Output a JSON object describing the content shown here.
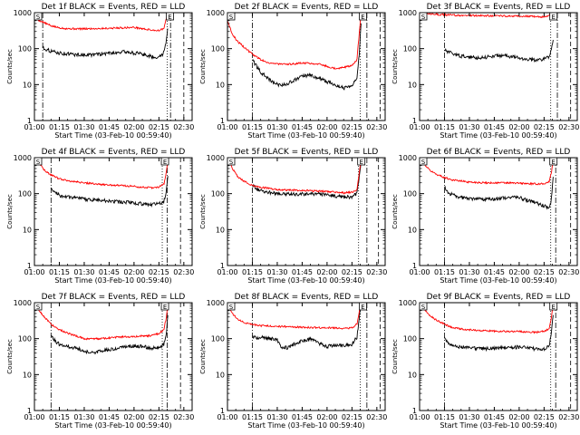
{
  "chart_data": [
    {
      "type": "line",
      "title": "Det 1f BLACK = Events, RED = LLD",
      "xlabel": "Start Time (03-Feb-10 00:59:40)",
      "ylabel": "Counts/sec",
      "x_ticks": [
        "01:00",
        "01:15",
        "01:30",
        "01:45",
        "02:00",
        "02:15",
        "02:30"
      ],
      "y_ticks": [
        "1",
        "10",
        "100",
        "1000"
      ],
      "ylim": [
        1,
        1000
      ],
      "y_scale": "log",
      "corner_labels": [
        "S",
        "E"
      ],
      "grid": false,
      "series": [
        {
          "color": "#ff0000",
          "x": [
            0,
            5,
            10,
            15,
            20,
            30,
            45,
            60,
            70,
            75,
            78,
            79.5,
            80.5
          ],
          "y": [
            700,
            550,
            430,
            380,
            360,
            355,
            370,
            390,
            330,
            320,
            360,
            700,
            1000
          ]
        },
        {
          "color": "#000000",
          "x": [
            5,
            6,
            10,
            15,
            25,
            35,
            45,
            55,
            65,
            72,
            76,
            78,
            79.5,
            80.5
          ],
          "y": [
            110,
            100,
            85,
            75,
            68,
            67,
            75,
            82,
            70,
            58,
            60,
            80,
            180,
            500
          ]
        }
      ],
      "vlines": [
        {
          "x": 5,
          "style": "dash-dot"
        },
        {
          "x": 80,
          "style": "dotted"
        },
        {
          "x": 82,
          "style": "dash-dot"
        },
        {
          "x": 90,
          "style": "dashed"
        }
      ]
    },
    {
      "type": "line",
      "title": "Det 2f BLACK = Events, RED = LLD",
      "xlabel": "Start Time (03-Feb-10 00:59:40)",
      "ylabel": "Counts/sec",
      "x_ticks": [
        "01:00",
        "01:15",
        "01:30",
        "01:45",
        "02:00",
        "02:15",
        "02:30"
      ],
      "y_ticks": [
        "1",
        "10",
        "100",
        "1000"
      ],
      "ylim": [
        1,
        1000
      ],
      "y_scale": "log",
      "corner_labels": [
        "S",
        "E"
      ],
      "grid": false,
      "series": [
        {
          "color": "#ff0000",
          "x": [
            0,
            3,
            6,
            10,
            15,
            20,
            25,
            35,
            45,
            55,
            60,
            65,
            70,
            75,
            78,
            79.5,
            80.5
          ],
          "y": [
            600,
            250,
            160,
            110,
            70,
            50,
            40,
            36,
            40,
            38,
            32,
            28,
            30,
            34,
            50,
            300,
            1000
          ]
        },
        {
          "color": "#000000",
          "x": [
            15,
            17,
            20,
            25,
            30,
            35,
            40,
            45,
            50,
            55,
            60,
            65,
            70,
            75,
            78,
            79.5,
            80.5
          ],
          "y": [
            50,
            35,
            22,
            14,
            10,
            10,
            13,
            17,
            18,
            15,
            12,
            10,
            8,
            10,
            14,
            80,
            600
          ]
        }
      ],
      "vlines": [
        {
          "x": 15,
          "style": "dash-dot"
        },
        {
          "x": 80,
          "style": "dotted"
        },
        {
          "x": 84,
          "style": "dash-dot"
        },
        {
          "x": 92,
          "style": "dashed"
        }
      ]
    },
    {
      "type": "line",
      "title": "Det 3f BLACK = Events, RED = LLD",
      "xlabel": "Start Time (03-Feb-10 00:59:40)",
      "ylabel": "Counts/sec",
      "x_ticks": [
        "01:00",
        "01:15",
        "01:30",
        "01:45",
        "02:00",
        "02:15",
        "02:30"
      ],
      "y_ticks": [
        "1",
        "10",
        "100",
        "1000"
      ],
      "ylim": [
        1,
        1000
      ],
      "y_scale": "log",
      "corner_labels": [
        "S",
        "E"
      ],
      "grid": false,
      "series": [
        {
          "color": "#ff0000",
          "x": [
            0,
            5,
            10,
            15,
            25,
            35,
            45,
            55,
            65,
            72,
            76,
            78,
            79.5,
            80.5
          ],
          "y": [
            1000,
            950,
            900,
            870,
            840,
            830,
            820,
            810,
            800,
            760,
            780,
            850,
            950,
            1000
          ]
        },
        {
          "color": "#000000",
          "x": [
            15,
            16,
            20,
            25,
            30,
            35,
            40,
            45,
            50,
            55,
            60,
            65,
            70,
            75,
            78,
            79.5,
            80.5
          ],
          "y": [
            90,
            85,
            72,
            62,
            58,
            56,
            58,
            62,
            65,
            60,
            55,
            50,
            48,
            52,
            60,
            100,
            200
          ]
        }
      ],
      "vlines": [
        {
          "x": 15,
          "style": "dash-dot"
        },
        {
          "x": 79,
          "style": "dotted"
        },
        {
          "x": 83,
          "style": "dash-dot"
        },
        {
          "x": 91,
          "style": "dashed"
        }
      ]
    },
    {
      "type": "line",
      "title": "Det 4f BLACK = Events, RED = LLD",
      "xlabel": "Start Time (03-Feb-10 00:59:40)",
      "ylabel": "Counts/sec",
      "x_ticks": [
        "01:00",
        "01:15",
        "01:30",
        "01:45",
        "02:00",
        "02:15",
        "02:30"
      ],
      "y_ticks": [
        "1",
        "10",
        "100",
        "1000"
      ],
      "ylim": [
        1,
        1000
      ],
      "y_scale": "log",
      "corner_labels": [
        "S",
        "E"
      ],
      "grid": false,
      "series": [
        {
          "color": "#ff0000",
          "x": [
            0,
            3,
            6,
            10,
            15,
            20,
            30,
            40,
            50,
            60,
            65,
            70,
            75,
            78,
            79.5,
            80.5
          ],
          "y": [
            1000,
            700,
            450,
            330,
            260,
            230,
            200,
            180,
            170,
            160,
            150,
            145,
            155,
            180,
            400,
            1000
          ]
        },
        {
          "color": "#000000",
          "x": [
            10,
            12,
            15,
            20,
            30,
            40,
            50,
            60,
            65,
            70,
            75,
            78,
            79.5,
            80.5
          ],
          "y": [
            150,
            110,
            90,
            80,
            70,
            65,
            60,
            55,
            52,
            50,
            52,
            60,
            120,
            400
          ]
        }
      ],
      "vlines": [
        {
          "x": 10,
          "style": "dash-dot"
        },
        {
          "x": 77,
          "style": "dotted"
        },
        {
          "x": 80,
          "style": "dash-dot"
        },
        {
          "x": 88,
          "style": "dashed"
        }
      ]
    },
    {
      "type": "line",
      "title": "Det 5f BLACK = Events, RED = LLD",
      "xlabel": "Start Time (03-Feb-10 00:59:40)",
      "ylabel": "Counts/sec",
      "x_ticks": [
        "01:00",
        "01:15",
        "01:30",
        "01:45",
        "02:00",
        "02:15",
        "02:30"
      ],
      "y_ticks": [
        "1",
        "10",
        "100",
        "1000"
      ],
      "ylim": [
        1,
        1000
      ],
      "y_scale": "log",
      "corner_labels": [
        "S",
        "E"
      ],
      "grid": false,
      "series": [
        {
          "color": "#ff0000",
          "x": [
            0,
            3,
            6,
            10,
            15,
            20,
            30,
            40,
            50,
            60,
            65,
            70,
            75,
            78,
            79.5,
            80.5
          ],
          "y": [
            1000,
            500,
            300,
            220,
            170,
            150,
            130,
            125,
            120,
            115,
            110,
            105,
            110,
            130,
            400,
            1000
          ]
        },
        {
          "color": "#000000",
          "x": [
            15,
            17,
            20,
            25,
            30,
            40,
            50,
            60,
            65,
            70,
            75,
            78,
            79.5,
            80.5
          ],
          "y": [
            180,
            140,
            120,
            110,
            100,
            95,
            100,
            95,
            85,
            80,
            80,
            100,
            300,
            800
          ]
        }
      ],
      "vlines": [
        {
          "x": 15,
          "style": "dash-dot"
        },
        {
          "x": 79,
          "style": "dotted"
        },
        {
          "x": 84,
          "style": "dash-dot"
        },
        {
          "x": 91,
          "style": "dashed"
        }
      ]
    },
    {
      "type": "line",
      "title": "Det 6f BLACK = Events, RED = LLD",
      "xlabel": "Start Time (03-Feb-10 00:59:40)",
      "ylabel": "Counts/sec",
      "x_ticks": [
        "01:00",
        "01:15",
        "01:30",
        "01:45",
        "02:00",
        "02:15",
        "02:30"
      ],
      "y_ticks": [
        "1",
        "10",
        "100",
        "1000"
      ],
      "ylim": [
        1,
        1000
      ],
      "y_scale": "log",
      "corner_labels": [
        "S",
        "E"
      ],
      "grid": false,
      "series": [
        {
          "color": "#ff0000",
          "x": [
            0,
            3,
            6,
            10,
            15,
            20,
            30,
            40,
            50,
            60,
            65,
            70,
            75,
            78,
            79.5,
            80.5
          ],
          "y": [
            1000,
            650,
            450,
            350,
            280,
            240,
            210,
            200,
            200,
            195,
            190,
            185,
            190,
            210,
            400,
            1000
          ]
        },
        {
          "color": "#000000",
          "x": [
            15,
            17,
            20,
            25,
            30,
            40,
            50,
            55,
            60,
            65,
            70,
            75,
            78,
            79.5,
            80.5
          ],
          "y": [
            150,
            110,
            90,
            78,
            72,
            68,
            75,
            80,
            78,
            65,
            55,
            45,
            40,
            70,
            300
          ]
        }
      ],
      "vlines": [
        {
          "x": 15,
          "style": "dash-dot"
        },
        {
          "x": 79,
          "style": "dotted"
        },
        {
          "x": 82,
          "style": "dash-dot"
        },
        {
          "x": 91,
          "style": "dashed"
        }
      ]
    },
    {
      "type": "line",
      "title": "Det 7f BLACK = Events, RED = LLD",
      "xlabel": "Start Time (03-Feb-10 00:59:40)",
      "ylabel": "Counts/sec",
      "x_ticks": [
        "01:00",
        "01:15",
        "01:30",
        "01:45",
        "02:00",
        "02:15",
        "02:30"
      ],
      "y_ticks": [
        "1",
        "10",
        "100",
        "1000"
      ],
      "ylim": [
        1,
        1000
      ],
      "y_scale": "log",
      "corner_labels": [
        "S",
        "E"
      ],
      "grid": false,
      "series": [
        {
          "color": "#ff0000",
          "x": [
            0,
            3,
            6,
            10,
            15,
            20,
            25,
            30,
            40,
            50,
            60,
            65,
            70,
            75,
            78,
            79.5,
            80.5
          ],
          "y": [
            1000,
            600,
            400,
            250,
            180,
            140,
            120,
            100,
            100,
            110,
            115,
            120,
            120,
            140,
            180,
            400,
            1000
          ]
        },
        {
          "color": "#000000",
          "x": [
            10,
            12,
            15,
            20,
            25,
            30,
            35,
            40,
            45,
            50,
            55,
            60,
            65,
            70,
            75,
            78,
            79.5,
            80.5
          ],
          "y": [
            120,
            90,
            70,
            60,
            55,
            45,
            40,
            45,
            50,
            55,
            60,
            62,
            60,
            55,
            55,
            70,
            150,
            500
          ]
        }
      ],
      "vlines": [
        {
          "x": 10,
          "style": "dash-dot"
        },
        {
          "x": 77,
          "style": "dotted"
        },
        {
          "x": 80,
          "style": "dash-dot"
        },
        {
          "x": 88,
          "style": "dashed"
        }
      ]
    },
    {
      "type": "line",
      "title": "Det 8f BLACK = Events, RED = LLD",
      "xlabel": "Start Time (03-Feb-10 00:59:40)",
      "ylabel": "Counts/sec",
      "x_ticks": [
        "01:00",
        "01:15",
        "01:30",
        "01:45",
        "02:00",
        "02:15",
        "02:30"
      ],
      "y_ticks": [
        "1",
        "10",
        "100",
        "1000"
      ],
      "ylim": [
        1,
        1000
      ],
      "y_scale": "log",
      "corner_labels": [
        "S",
        "E"
      ],
      "grid": false,
      "series": [
        {
          "color": "#ff0000",
          "x": [
            0,
            3,
            6,
            10,
            15,
            20,
            30,
            40,
            50,
            60,
            70,
            75,
            78,
            79.5,
            80.5
          ],
          "y": [
            1000,
            500,
            350,
            280,
            250,
            230,
            220,
            210,
            205,
            200,
            195,
            200,
            250,
            600,
            1000
          ]
        },
        {
          "color": "#000000",
          "x": [
            15,
            17,
            20,
            25,
            30,
            32,
            36,
            40,
            45,
            50,
            55,
            60,
            65,
            70,
            75,
            78,
            79.5,
            80.5
          ],
          "y": [
            120,
            105,
            110,
            100,
            95,
            60,
            55,
            70,
            90,
            95,
            75,
            60,
            65,
            65,
            70,
            110,
            400,
            1000
          ]
        }
      ],
      "vlines": [
        {
          "x": 15,
          "style": "dash-dot"
        },
        {
          "x": 80,
          "style": "dotted"
        },
        {
          "x": 84,
          "style": "dash-dot"
        },
        {
          "x": 92,
          "style": "dashed"
        }
      ]
    },
    {
      "type": "line",
      "title": "Det 9f BLACK = Events, RED = LLD",
      "xlabel": "Start Time (03-Feb-10 00:59:40)",
      "ylabel": "Counts/sec",
      "x_ticks": [
        "01:00",
        "01:15",
        "01:30",
        "01:45",
        "02:00",
        "02:15",
        "02:30"
      ],
      "y_ticks": [
        "1",
        "10",
        "100",
        "1000"
      ],
      "ylim": [
        1,
        1000
      ],
      "y_scale": "log",
      "corner_labels": [
        "S",
        "E"
      ],
      "grid": false,
      "series": [
        {
          "color": "#ff0000",
          "x": [
            0,
            3,
            6,
            10,
            15,
            20,
            30,
            40,
            50,
            60,
            65,
            70,
            75,
            78,
            79.5,
            80.5
          ],
          "y": [
            1000,
            650,
            450,
            330,
            250,
            200,
            175,
            165,
            160,
            158,
            155,
            150,
            160,
            190,
            400,
            1000
          ]
        },
        {
          "color": "#000000",
          "x": [
            15,
            17,
            20,
            25,
            30,
            40,
            50,
            60,
            65,
            70,
            75,
            78,
            79.5,
            80.5
          ],
          "y": [
            110,
            80,
            65,
            58,
            55,
            52,
            55,
            58,
            56,
            52,
            50,
            60,
            150,
            500
          ]
        }
      ],
      "vlines": [
        {
          "x": 15,
          "style": "dash-dot"
        },
        {
          "x": 79,
          "style": "dotted"
        },
        {
          "x": 82,
          "style": "dash-dot"
        },
        {
          "x": 91,
          "style": "dashed"
        }
      ]
    }
  ]
}
